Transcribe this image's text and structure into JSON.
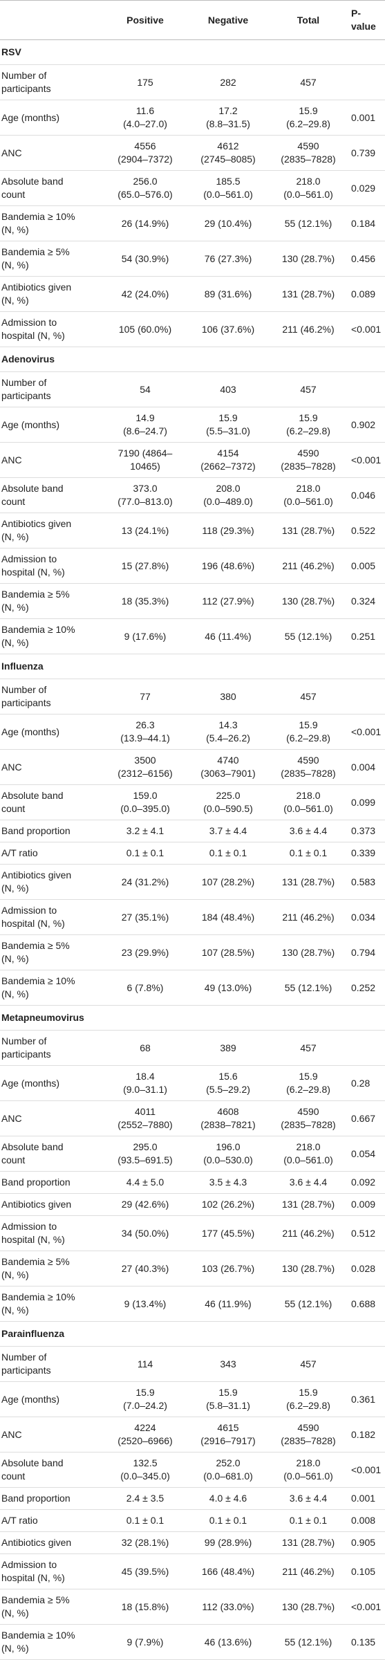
{
  "table": {
    "header": [
      "Positive",
      "Negative",
      "Total",
      "P-value"
    ],
    "sections": [
      {
        "name": "RSV",
        "rows": [
          [
            "Number of\nparticipants",
            "175",
            "282",
            "457",
            null
          ],
          [
            "Age (months)",
            "11.6\n(4.0–27.0)",
            "17.2\n(8.8–31.5)",
            "15.9\n(6.2–29.8)",
            "0.001"
          ],
          [
            "ANC",
            "4556\n(2904–7372)",
            "4612\n(2745–8085)",
            "4590\n(2835–7828)",
            "0.739"
          ],
          [
            "Absolute band\ncount",
            "256.0\n(65.0–576.0)",
            "185.5\n(0.0–561.0)",
            "218.0\n(0.0–561.0)",
            "0.029"
          ],
          [
            "Bandemia ≥ 10%\n(N, %)",
            "26 (14.9%)",
            "29 (10.4%)",
            "55 (12.1%)",
            "0.184"
          ],
          [
            "Bandemia ≥ 5%\n(N, %)",
            "54 (30.9%)",
            "76 (27.3%)",
            "130 (28.7%)",
            "0.456"
          ],
          [
            "Antibiotics given\n(N, %)",
            "42 (24.0%)",
            "89 (31.6%)",
            "131 (28.7%)",
            "0.089"
          ],
          [
            "Admission to\nhospital (N, %)",
            "105 (60.0%)",
            "106 (37.6%)",
            "211 (46.2%)",
            "<0.001"
          ]
        ]
      },
      {
        "name": "Adenovirus",
        "rows": [
          [
            "Number of\nparticipants",
            "54",
            "403",
            "457",
            null
          ],
          [
            "Age (months)",
            "14.9\n(8.6–24.7)",
            "15.9\n(5.5–31.0)",
            "15.9\n(6.2–29.8)",
            "0.902"
          ],
          [
            "ANC",
            "7190 (4864–\n10465)",
            "4154\n(2662–7372)",
            "4590\n(2835–7828)",
            "<0.001"
          ],
          [
            "Absolute band\ncount",
            "373.0\n(77.0–813.0)",
            "208.0\n(0.0–489.0)",
            "218.0\n(0.0–561.0)",
            "0.046"
          ],
          [
            "Antibiotics given\n(N, %)",
            "13 (24.1%)",
            "118 (29.3%)",
            "131 (28.7%)",
            "0.522"
          ],
          [
            "Admission to\nhospital (N, %)",
            "15 (27.8%)",
            "196 (48.6%)",
            "211 (46.2%)",
            "0.005"
          ],
          [
            "Bandemia ≥ 5%\n(N, %)",
            "18 (35.3%)",
            "112 (27.9%)",
            "130 (28.7%)",
            "0.324"
          ],
          [
            "Bandemia ≥ 10%\n(N, %)",
            "9 (17.6%)",
            "46 (11.4%)",
            "55 (12.1%)",
            "0.251"
          ]
        ]
      },
      {
        "name": "Influenza",
        "rows": [
          [
            "Number of\nparticipants",
            "77",
            "380",
            "457",
            null
          ],
          [
            "Age (months)",
            "26.3\n(13.9–44.1)",
            "14.3\n(5.4–26.2)",
            "15.9\n(6.2–29.8)",
            "<0.001"
          ],
          [
            "ANC",
            "3500\n(2312–6156)",
            "4740\n(3063–7901)",
            "4590\n(2835–7828)",
            "0.004"
          ],
          [
            "Absolute band\ncount",
            "159.0\n(0.0–395.0)",
            "225.0\n(0.0–590.5)",
            "218.0\n(0.0–561.0)",
            "0.099"
          ],
          [
            "Band proportion",
            "3.2 ± 4.1",
            "3.7 ± 4.4",
            "3.6 ± 4.4",
            "0.373"
          ],
          [
            "A/T ratio",
            "0.1 ± 0.1",
            "0.1 ± 0.1",
            "0.1 ± 0.1",
            "0.339"
          ],
          [
            "Antibiotics given\n(N, %)",
            "24 (31.2%)",
            "107 (28.2%)",
            "131 (28.7%)",
            "0.583"
          ],
          [
            "Admission to\nhospital (N, %)",
            "27 (35.1%)",
            "184 (48.4%)",
            "211 (46.2%)",
            "0.034"
          ],
          [
            "Bandemia ≥ 5%\n(N, %)",
            "23 (29.9%)",
            "107 (28.5%)",
            "130 (28.7%)",
            "0.794"
          ],
          [
            "Bandemia ≥ 10%\n(N, %)",
            "6 (7.8%)",
            "49 (13.0%)",
            "55 (12.1%)",
            "0.252"
          ]
        ]
      },
      {
        "name": "Metapneumovirus",
        "rows": [
          [
            "Number of\nparticipants",
            "68",
            "389",
            "457",
            null
          ],
          [
            "Age (months)",
            "18.4\n(9.0–31.1)",
            "15.6\n(5.5–29.2)",
            "15.9\n(6.2–29.8)",
            "0.28"
          ],
          [
            "ANC",
            "4011\n(2552–7880)",
            "4608\n(2838–7821)",
            "4590\n(2835–7828)",
            "0.667"
          ],
          [
            "Absolute band\ncount",
            "295.0\n(93.5–691.5)",
            "196.0\n(0.0–530.0)",
            "218.0\n(0.0–561.0)",
            "0.054"
          ],
          [
            "Band proportion",
            "4.4 ± 5.0",
            "3.5 ± 4.3",
            "3.6 ± 4.4",
            "0.092"
          ],
          [
            "Antibiotics given",
            "29 (42.6%)",
            "102 (26.2%)",
            "131 (28.7%)",
            "0.009"
          ],
          [
            "Admission to\nhospital (N, %)",
            "34 (50.0%)",
            "177 (45.5%)",
            "211 (46.2%)",
            "0.512"
          ],
          [
            "Bandemia ≥ 5%\n(N, %)",
            "27 (40.3%)",
            "103 (26.7%)",
            "130 (28.7%)",
            "0.028"
          ],
          [
            "Bandemia ≥ 10%\n(N, %)",
            "9 (13.4%)",
            "46 (11.9%)",
            "55 (12.1%)",
            "0.688"
          ]
        ]
      },
      {
        "name": "Parainfluenza",
        "rows": [
          [
            "Number of\nparticipants",
            "114",
            "343",
            "457",
            null
          ],
          [
            "Age (months)",
            "15.9\n(7.0–24.2)",
            "15.9\n(5.8–31.1)",
            "15.9\n(6.2–29.8)",
            "0.361"
          ],
          [
            "ANC",
            "4224\n(2520–6966)",
            "4615\n(2916–7917)",
            "4590\n(2835–7828)",
            "0.182"
          ],
          [
            "Absolute band\ncount",
            "132.5\n(0.0–345.0)",
            "252.0\n(0.0–681.0)",
            "218.0\n(0.0–561.0)",
            "<0.001"
          ],
          [
            "Band proportion",
            "2.4 ± 3.5",
            "4.0 ± 4.6",
            "3.6 ± 4.4",
            "0.001"
          ],
          [
            "A/T ratio",
            "0.1 ± 0.1",
            "0.1 ± 0.1",
            "0.1 ± 0.1",
            "0.008"
          ],
          [
            "Antibiotics given",
            "32 (28.1%)",
            "99 (28.9%)",
            "131 (28.7%)",
            "0.905"
          ],
          [
            "Admission to\nhospital (N, %)",
            "45 (39.5%)",
            "166 (48.4%)",
            "211 (46.2%)",
            "0.105"
          ],
          [
            "Bandemia ≥ 5%\n(N, %)",
            "18 (15.8%)",
            "112 (33.0%)",
            "130 (28.7%)",
            "<0.001"
          ],
          [
            "Bandemia ≥ 10%\n(N, %)",
            "9 (7.9%)",
            "46 (13.6%)",
            "55 (12.1%)",
            "0.135"
          ]
        ]
      }
    ]
  }
}
